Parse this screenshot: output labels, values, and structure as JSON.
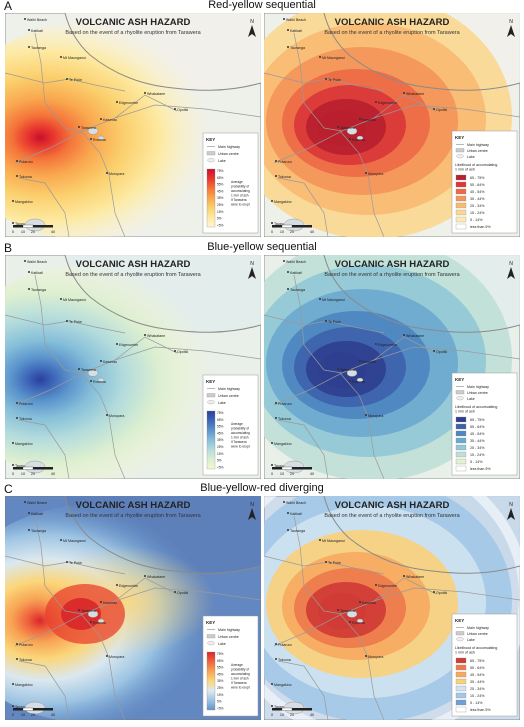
{
  "sections": [
    {
      "letter": "A",
      "label": "Red-yellow sequential",
      "scheme": "ry",
      "cont_colors": [
        "#c8102e",
        "#e8362e",
        "#f4743a",
        "#f9a84f",
        "#fbd06e",
        "#fde9a0",
        "#fff6cf"
      ],
      "class_colors": [
        "#b8202e",
        "#d9373a",
        "#ec6a45",
        "#f4955a",
        "#f8bb73",
        "#fbd891",
        "#fdebb6"
      ],
      "bg": "#eef0ea"
    },
    {
      "letter": "B",
      "label": "Blue-yellow sequential",
      "scheme": "by",
      "cont_colors": [
        "#2a3f9d",
        "#3e66b8",
        "#5b94cc",
        "#86bfd9",
        "#b4dcdc",
        "#dcefd0",
        "#f4f8cc"
      ],
      "class_colors": [
        "#2f3f8f",
        "#3d62ad",
        "#4d86c0",
        "#6ba9cf",
        "#93c8d6",
        "#bfe0d6",
        "#e3f1cf"
      ],
      "bg": "#e9efe9"
    },
    {
      "letter": "C",
      "label": "Blue-yellow-red diverging",
      "scheme": "byr",
      "cont_colors": [
        "#d8262a",
        "#f0633e",
        "#f7a454",
        "#fbd67a",
        "#dbe8ef",
        "#9dc4e3",
        "#5f93cc"
      ],
      "class_colors": [
        "#cf3b35",
        "#ee7a4c",
        "#f6a961",
        "#f9d07d",
        "#cfe3f1",
        "#a3c8e6",
        "#6f9fd6"
      ],
      "bg": "#5d7fb9"
    }
  ],
  "map": {
    "title": "VOLCANIC ASH HAZARD",
    "subtitle": "Based on the event of a rhyolite eruption from Tarawera",
    "places": [
      "Waihi Beach",
      "Katikati",
      "Tauranga",
      "Te Puke",
      "Mt Maunganui",
      "Whakatane",
      "Edgecumbe",
      "Opotiki",
      "Kawerau",
      "Rotorua",
      "Tarawera",
      "Putaruru",
      "Tokoroa",
      "Murupara",
      "Mangakino",
      "Taupo"
    ],
    "north": "N",
    "scale_labels": [
      "0",
      "10",
      "20",
      "40"
    ]
  },
  "legend_left": {
    "key": "KEY",
    "items": [
      "Main highway",
      "Urban centre",
      "Lake"
    ],
    "ticks": [
      "75%",
      "65%",
      "55%",
      "45%",
      "35%",
      "25%",
      "15%",
      "5%",
      "<5%"
    ],
    "note": [
      "Average",
      "probability of",
      "accumulating",
      "1 mm of ash",
      "if Tarawera",
      "were to erupt"
    ]
  },
  "legend_right": {
    "key": "KEY",
    "items": [
      "Main highway",
      "Urban centre",
      "Lake"
    ],
    "heading": [
      "Likelihood of accumulating",
      "1 mm of ash"
    ],
    "classes": [
      "65 - 75%",
      "55 - 64%",
      "45 - 54%",
      "35 - 44%",
      "25 - 34%",
      "15 - 24%",
      "5 - 14%",
      "less than 5%"
    ]
  }
}
